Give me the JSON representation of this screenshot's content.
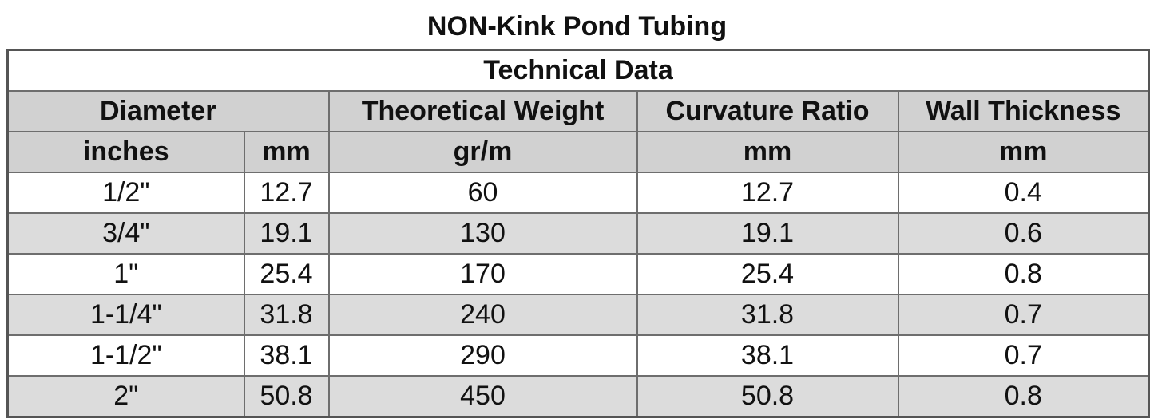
{
  "title": "NON-Kink Pond Tubing",
  "table": {
    "caption": "Technical Data",
    "headers": {
      "diameter": "Diameter",
      "theoretical_weight": "Theoretical Weight",
      "curvature_ratio": "Curvature Ratio",
      "wall_thickness": "Wall Thickness"
    },
    "units": {
      "inches": "inches",
      "diameter_mm": "mm",
      "weight": "gr/m",
      "curvature": "mm",
      "wall": "mm"
    },
    "rows": [
      {
        "inches": "1/2\"",
        "mm": "12.7",
        "weight": "60",
        "curvature": "12.7",
        "wall": "0.4"
      },
      {
        "inches": "3/4\"",
        "mm": "19.1",
        "weight": "130",
        "curvature": "19.1",
        "wall": "0.6"
      },
      {
        "inches": "1\"",
        "mm": "25.4",
        "weight": "170",
        "curvature": "25.4",
        "wall": "0.8"
      },
      {
        "inches": "1-1/4\"",
        "mm": "31.8",
        "weight": "240",
        "curvature": "31.8",
        "wall": "0.7"
      },
      {
        "inches": "1-1/2\"",
        "mm": "38.1",
        "weight": "290",
        "curvature": "38.1",
        "wall": "0.7"
      },
      {
        "inches": "2\"",
        "mm": "50.8",
        "weight": "450",
        "curvature": "50.8",
        "wall": "0.8"
      }
    ]
  }
}
